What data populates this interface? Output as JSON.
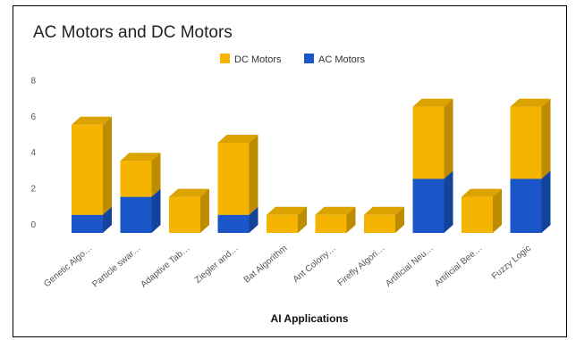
{
  "chart_data": {
    "type": "bar",
    "stacked": true,
    "title": "AC Motors and DC Motors",
    "xlabel": "AI Applications",
    "ylabel": "",
    "ylim": [
      0,
      8
    ],
    "yticks": [
      0,
      2,
      4,
      6,
      8
    ],
    "grid": false,
    "legend": "top-center",
    "categories": [
      "Genetic Algo…",
      "Particle swar…",
      "Adaptive Tab…",
      "Ziegler and…",
      "Bat Algorithm",
      "Ant Colony…",
      "Firefly Algori…",
      "Artificial Neu…",
      "Artificial Bee…",
      "Fuzzy Logic"
    ],
    "series": [
      {
        "name": "DC Motors",
        "color": "#F4B400",
        "values": [
          5,
          2,
          2,
          4,
          1,
          1,
          1,
          4,
          2,
          4
        ]
      },
      {
        "name": "AC Motors",
        "color": "#1A56C8",
        "values": [
          1,
          2,
          0,
          1,
          0,
          0,
          0,
          3,
          0,
          3
        ]
      }
    ],
    "legend_order": [
      "DC Motors",
      "AC Motors"
    ]
  }
}
